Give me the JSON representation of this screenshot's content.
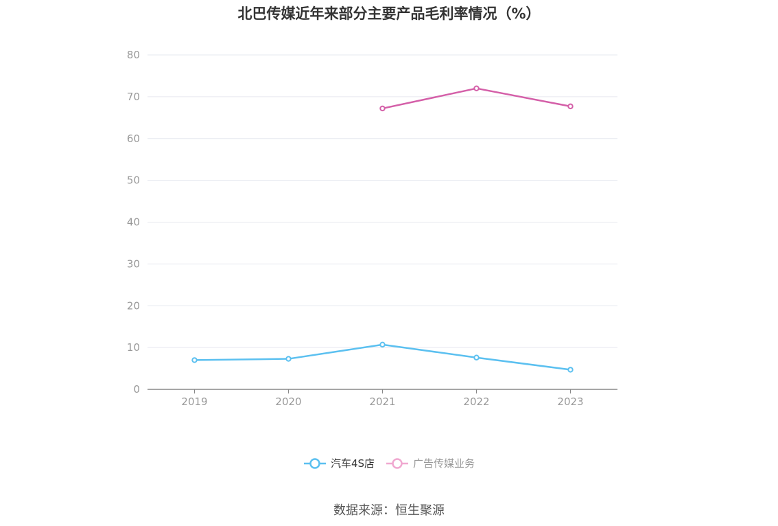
{
  "chart_data": {
    "type": "line",
    "title": "北巴传媒近年来部分主要产品毛利率情况（%）",
    "categories": [
      "2019",
      "2020",
      "2021",
      "2022",
      "2023"
    ],
    "y_ticks": [
      "0",
      "10",
      "20",
      "30",
      "40",
      "50",
      "60",
      "70",
      "80"
    ],
    "ylim": [
      0,
      80
    ],
    "grid": true,
    "legend_position": "bottom-center",
    "series": [
      {
        "name": "汽车4S店",
        "color": "#5bc0f0",
        "values": [
          7.0,
          7.3,
          10.7,
          7.6,
          4.7
        ]
      },
      {
        "name": "广告传媒业务",
        "color": "#d45fa8",
        "values": [
          null,
          null,
          67.2,
          72.0,
          67.7
        ]
      }
    ]
  },
  "legend": {
    "items": [
      {
        "label": "汽车4S店",
        "color": "#5bc0f0",
        "active": true
      },
      {
        "label": "广告传媒业务",
        "color": "#f0a8d0",
        "active": false
      }
    ]
  },
  "source": "数据来源：恒生聚源"
}
